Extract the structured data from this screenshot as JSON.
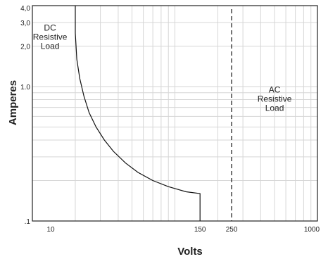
{
  "chart_data": {
    "type": "line",
    "title": "",
    "xlabel": "Volts",
    "ylabel": "Amperes",
    "x_scale": "log",
    "y_scale": "log",
    "xlim": [
      10,
      1000
    ],
    "ylim": [
      0.1,
      4.0
    ],
    "grid": true,
    "x_tick_labels": [
      {
        "value": 10,
        "label": "10"
      },
      {
        "value": 150,
        "label": "150"
      },
      {
        "value": 250,
        "label": "250"
      },
      {
        "value": 1000,
        "label": "1000"
      }
    ],
    "y_tick_labels": [
      {
        "value": 4.0,
        "label": "4,0"
      },
      {
        "value": 3.0,
        "label": "3,0"
      },
      {
        "value": 2.0,
        "label": "2,0"
      },
      {
        "value": 1.0,
        "label": "1.0"
      },
      {
        "value": 0.1,
        "label": ".1"
      }
    ],
    "series": [
      {
        "x": [
          20,
          20,
          20.5,
          21.5,
          23,
          25,
          28,
          32,
          37,
          45,
          55,
          70,
          90,
          120,
          150,
          150,
          150
        ],
        "y": [
          4.0,
          2.5,
          1.6,
          1.15,
          0.85,
          0.64,
          0.5,
          0.4,
          0.33,
          0.27,
          0.23,
          0.2,
          0.18,
          0.165,
          0.16,
          0.13,
          0.1
        ]
      }
    ],
    "reference_lines": [
      {
        "axis": "x",
        "value": 250,
        "style": "dashed"
      }
    ],
    "annotations": [
      {
        "text": [
          "DC",
          "Resistive",
          "Load"
        ],
        "x": 13.3,
        "y": 2.6
      },
      {
        "text": [
          "AC",
          "Resistive",
          "Load"
        ],
        "x": 500,
        "y": 0.9
      }
    ]
  }
}
